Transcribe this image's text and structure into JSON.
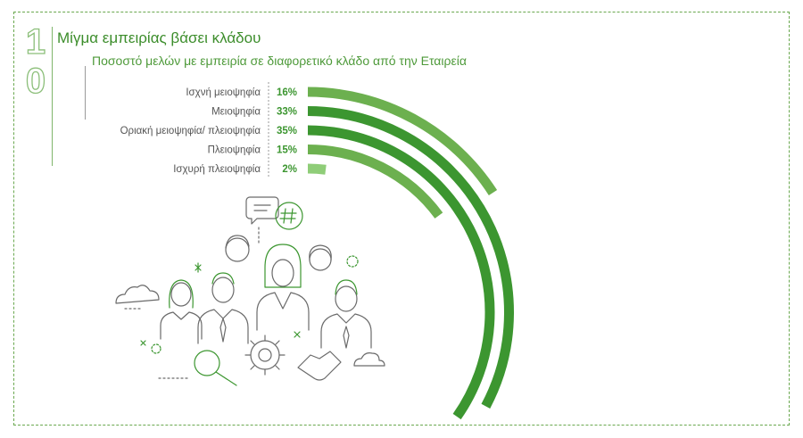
{
  "page_number": [
    "1",
    "0"
  ],
  "chart_data": {
    "type": "radial-bar",
    "title": "Μίγμα εμπειρίας βάσει κλάδου",
    "subtitle": "Ποσοστό μελών με εμπειρία  σε διαφορετικό  κλάδο από την  Εταιρεία",
    "categories": [
      "Ισχνή  μειοψηφία",
      "Μειοψηφία",
      "Οριακή μειοψηφία/  πλειοψηφία",
      "Πλειοψηφία",
      "Ισχυρή  πλειοψηφία"
    ],
    "values": [
      16,
      33,
      35,
      15,
      2
    ],
    "value_labels": [
      "16%",
      "33%",
      "35%",
      "15%",
      "2%"
    ],
    "colors": [
      "#6cb04f",
      "#3c9630",
      "#3c9630",
      "#6cb04f",
      "#8fcd78"
    ]
  }
}
